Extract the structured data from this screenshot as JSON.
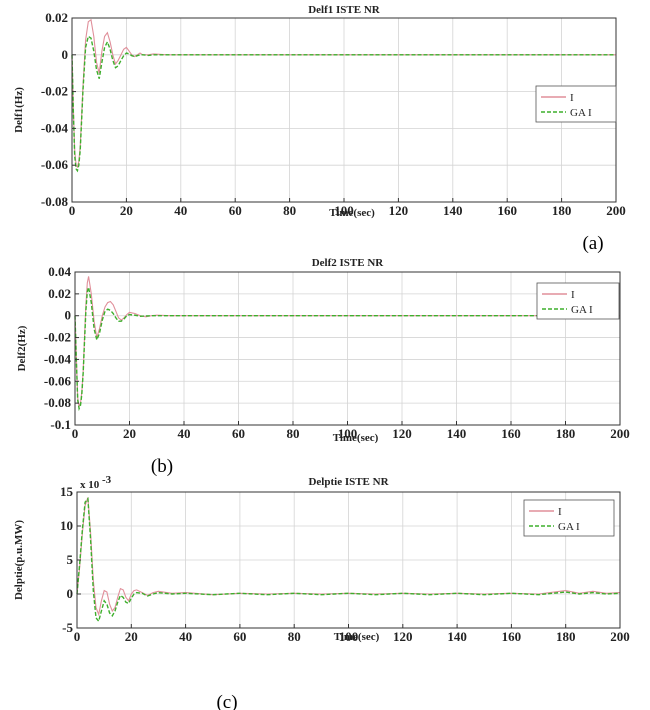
{
  "chart_data": [
    {
      "type": "line",
      "title": "Delf1  ISTE NR",
      "xlabel": "Time(sec)",
      "ylabel": "Delf1(Hz)",
      "panel_label": "(a)",
      "xlim": [
        0,
        200
      ],
      "ylim": [
        -0.08,
        0.02
      ],
      "xticks": [
        0,
        20,
        40,
        60,
        80,
        100,
        120,
        140,
        160,
        180,
        200
      ],
      "yticks": [
        0.02,
        0,
        -0.02,
        -0.04,
        -0.06,
        -0.08
      ],
      "ytick_labels": [
        "0.02",
        "0",
        "-0.02",
        "-0.04",
        "-0.06",
        "-0.08"
      ],
      "grid": true,
      "legend_position": "right",
      "series": [
        {
          "name": "I",
          "color": "#e08f9a",
          "x": [
            0,
            0.5,
            1,
            1.5,
            2,
            2.5,
            3,
            3.5,
            4,
            5,
            6,
            7,
            8,
            9,
            10,
            11,
            12,
            13,
            14,
            15,
            16,
            17,
            18,
            19,
            20,
            21,
            22,
            23,
            24,
            25,
            26,
            28,
            30,
            35,
            40,
            50,
            60,
            80,
            100,
            120,
            140,
            160,
            180,
            200
          ],
          "y": [
            0,
            -0.03,
            -0.052,
            -0.06,
            -0.061,
            -0.058,
            -0.05,
            -0.035,
            -0.018,
            0.008,
            0.018,
            0.019,
            0.01,
            -0.004,
            -0.01,
            0.002,
            0.01,
            0.012,
            0.007,
            0.0,
            -0.005,
            -0.003,
            0.0,
            0.003,
            0.004,
            0.002,
            0.0,
            -0.001,
            0.0,
            0.001,
            0.0,
            0.0,
            0.0005,
            0.0,
            0.0,
            0.0,
            0.0,
            0.0,
            0.0,
            0.0,
            0.0,
            0.0,
            0.0,
            0.0
          ]
        },
        {
          "name": "GA I",
          "color": "#3daf2c",
          "x": [
            0,
            0.5,
            1,
            1.5,
            2,
            2.5,
            3,
            3.5,
            4,
            5,
            6,
            7,
            8,
            9,
            10,
            11,
            12,
            13,
            14,
            15,
            16,
            17,
            18,
            19,
            20,
            21,
            22,
            23,
            24,
            25,
            26,
            28,
            30,
            35,
            40,
            50,
            60,
            80,
            100,
            120,
            140,
            160,
            180,
            200
          ],
          "y": [
            0,
            -0.032,
            -0.055,
            -0.062,
            -0.063,
            -0.06,
            -0.052,
            -0.037,
            -0.02,
            0.004,
            0.01,
            0.009,
            0.002,
            -0.008,
            -0.013,
            -0.004,
            0.004,
            0.007,
            0.003,
            -0.003,
            -0.007,
            -0.006,
            -0.003,
            -0.0005,
            0.001,
            0.0005,
            -0.0005,
            -0.001,
            -0.0005,
            0.0,
            0.0,
            -0.0003,
            0.0,
            0.0,
            0.0,
            0.0,
            0.0,
            0.0,
            0.0,
            0.0,
            0.0,
            0.0,
            0.0,
            0.0
          ]
        }
      ]
    },
    {
      "type": "line",
      "title": "Delf2  ISTE NR",
      "xlabel": "Time(sec)",
      "ylabel": "Delf2(Hz)",
      "panel_label": "(b)",
      "xlim": [
        0,
        200
      ],
      "ylim": [
        -0.1,
        0.04
      ],
      "xticks": [
        0,
        20,
        40,
        60,
        80,
        100,
        120,
        140,
        160,
        180,
        200
      ],
      "yticks": [
        0.04,
        0.02,
        0,
        -0.02,
        -0.04,
        -0.06,
        -0.08,
        -0.1
      ],
      "ytick_labels": [
        "0.04",
        "0.02",
        "0",
        "-0.02",
        "-0.04",
        "-0.06",
        "-0.08",
        "-0.1"
      ],
      "grid": true,
      "legend_position": "top-right",
      "series": [
        {
          "name": "I",
          "color": "#e08f9a",
          "x": [
            0,
            0.5,
            1,
            1.5,
            2,
            2.5,
            3,
            3.5,
            4,
            4.5,
            5,
            6,
            7,
            8,
            9,
            10,
            11,
            12,
            13,
            14,
            15,
            16,
            17,
            18,
            19,
            20,
            22,
            24,
            26,
            28,
            30,
            35,
            40,
            60,
            80,
            100,
            120,
            140,
            160,
            180,
            200
          ],
          "y": [
            0,
            -0.04,
            -0.075,
            -0.083,
            -0.08,
            -0.07,
            -0.05,
            -0.02,
            0.01,
            0.03,
            0.036,
            0.02,
            -0.005,
            -0.02,
            -0.012,
            0.0,
            0.008,
            0.012,
            0.013,
            0.01,
            0.004,
            -0.002,
            -0.004,
            -0.002,
            0.001,
            0.003,
            0.002,
            0.0,
            -0.001,
            0.0,
            0.0005,
            0.0,
            0.0,
            0.0,
            0.0,
            0.0,
            0.0,
            0.0,
            0.0,
            0.0,
            0.0
          ]
        },
        {
          "name": "GA I",
          "color": "#3daf2c",
          "x": [
            0,
            0.5,
            1,
            1.5,
            2,
            2.5,
            3,
            3.5,
            4,
            4.5,
            5,
            6,
            7,
            8,
            9,
            10,
            11,
            12,
            13,
            14,
            15,
            16,
            17,
            18,
            19,
            20,
            22,
            24,
            26,
            28,
            30,
            35,
            40,
            60,
            80,
            100,
            120,
            140,
            160,
            180,
            200
          ],
          "y": [
            0,
            -0.042,
            -0.077,
            -0.085,
            -0.082,
            -0.072,
            -0.052,
            -0.024,
            0.005,
            0.022,
            0.026,
            0.012,
            -0.012,
            -0.022,
            -0.016,
            -0.004,
            0.004,
            0.006,
            0.005,
            0.002,
            -0.002,
            -0.005,
            -0.005,
            -0.003,
            0.0,
            0.001,
            0.0005,
            -0.0005,
            -0.0003,
            0.0,
            0.0,
            0.0,
            0.0,
            0.0,
            0.0,
            0.0,
            0.0,
            0.0,
            0.0,
            0.0,
            0.0
          ]
        }
      ]
    },
    {
      "type": "line",
      "title": "Delptie ISTE NR",
      "xlabel": "Time(sec)",
      "ylabel": "Delptie(p.u.MW)",
      "panel_label": "(c)",
      "exponent_label": "x 10",
      "exponent_power": "-3",
      "xlim": [
        0,
        200
      ],
      "ylim": [
        -5,
        15
      ],
      "xticks": [
        0,
        20,
        40,
        60,
        80,
        100,
        120,
        140,
        160,
        180,
        200
      ],
      "yticks": [
        15,
        10,
        5,
        0,
        -5
      ],
      "ytick_labels": [
        "15",
        "10",
        "5",
        "0",
        "-5"
      ],
      "grid": true,
      "legend_position": "top-right",
      "series": [
        {
          "name": "I",
          "color": "#e08f9a",
          "x": [
            0,
            1,
            2,
            3,
            4,
            5,
            6,
            7,
            8,
            9,
            10,
            11,
            12,
            13,
            14,
            15,
            16,
            17,
            18,
            19,
            20,
            21,
            22,
            24,
            26,
            28,
            30,
            35,
            40,
            50,
            60,
            70,
            80,
            90,
            100,
            110,
            120,
            130,
            140,
            150,
            160,
            170,
            180,
            185,
            190,
            195,
            200
          ],
          "y": [
            0,
            4,
            9,
            13,
            14.2,
            9,
            2,
            -2,
            -3,
            -1,
            0.5,
            0.3,
            -1.5,
            -2.5,
            -2,
            -0.5,
            0.8,
            0.6,
            -0.5,
            -1,
            0,
            0.5,
            0.6,
            0.2,
            -0.2,
            0.2,
            0.4,
            0.1,
            0.2,
            -0.1,
            0.1,
            0.0,
            0.1,
            0.0,
            0.1,
            0.0,
            0.1,
            0.0,
            0.1,
            0.0,
            0.1,
            0.0,
            0.5,
            0.1,
            0.4,
            0.1,
            0.2
          ]
        },
        {
          "name": "GA I",
          "color": "#3daf2c",
          "x": [
            0,
            1,
            2,
            3,
            4,
            5,
            6,
            7,
            8,
            9,
            10,
            11,
            12,
            13,
            14,
            15,
            16,
            17,
            18,
            19,
            20,
            21,
            22,
            24,
            26,
            28,
            30,
            35,
            40,
            50,
            60,
            70,
            80,
            90,
            100,
            110,
            120,
            130,
            140,
            150,
            160,
            170,
            180,
            185,
            190,
            195,
            200
          ],
          "y": [
            0,
            4.5,
            9.5,
            13.5,
            14,
            8,
            0.5,
            -3.5,
            -4,
            -2.5,
            -1,
            -1.5,
            -2.8,
            -3.2,
            -2.5,
            -1.2,
            -0.2,
            -0.5,
            -1.2,
            -1.4,
            -0.6,
            0,
            0.2,
            0.1,
            -0.3,
            0.0,
            0.2,
            0.0,
            0.1,
            -0.1,
            0.1,
            -0.1,
            0.1,
            -0.1,
            0.1,
            -0.1,
            0.1,
            -0.1,
            0.1,
            -0.1,
            0.1,
            -0.1,
            0.3,
            0.0,
            0.2,
            0.0,
            0.1
          ]
        }
      ]
    }
  ]
}
